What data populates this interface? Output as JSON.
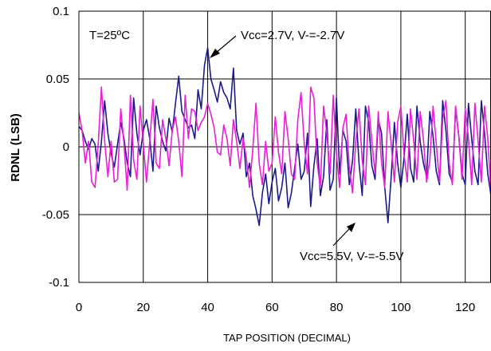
{
  "chart_data": {
    "type": "line",
    "title": "",
    "xlabel": "TAP POSITION (DECIMAL)",
    "ylabel": "RDNL (LSB)",
    "xlim": [
      0,
      128
    ],
    "ylim": [
      -0.1,
      0.1
    ],
    "x_ticks": [
      0,
      20,
      40,
      60,
      80,
      100,
      120
    ],
    "x_tick_labels": [
      "0",
      "20",
      "40",
      "60",
      "80",
      "100",
      "120"
    ],
    "y_ticks": [
      0.1,
      0.05,
      0,
      -0.05,
      -0.1
    ],
    "y_tick_labels": [
      "0.1",
      "0.05",
      "0",
      "-0.05",
      "-0.1"
    ],
    "grid": true,
    "annotations": {
      "temperature": "T=25ºC",
      "series_a_label": "Vcc=2.7V, V-=-2.7V",
      "series_b_label": "Vcc=5.5V, V-=-5.5V"
    },
    "series": [
      {
        "name": "Vcc=2.7V, V-=-2.7V",
        "color": "#1a1a8c",
        "x": [
          0,
          1,
          2,
          3,
          4,
          5,
          6,
          7,
          8,
          9,
          10,
          11,
          12,
          13,
          14,
          15,
          16,
          17,
          18,
          19,
          20,
          21,
          22,
          23,
          24,
          25,
          26,
          27,
          28,
          29,
          30,
          31,
          32,
          33,
          34,
          35,
          36,
          37,
          38,
          39,
          40,
          41,
          42,
          43,
          44,
          45,
          46,
          47,
          48,
          49,
          50,
          51,
          52,
          53,
          54,
          55,
          56,
          57,
          58,
          59,
          60,
          61,
          62,
          63,
          64,
          65,
          66,
          67,
          68,
          69,
          70,
          71,
          72,
          73,
          74,
          75,
          76,
          77,
          78,
          79,
          80,
          81,
          82,
          83,
          84,
          85,
          86,
          87,
          88,
          89,
          90,
          91,
          92,
          93,
          94,
          95,
          96,
          97,
          98,
          99,
          100,
          101,
          102,
          103,
          104,
          105,
          106,
          107,
          108,
          109,
          110,
          111,
          112,
          113,
          114,
          115,
          116,
          117,
          118,
          119,
          120,
          121,
          122,
          123,
          124,
          125,
          126,
          127,
          128
        ],
        "y": [
          0.015,
          0.012,
          0.004,
          -0.002,
          0.006,
          0.002,
          -0.018,
          0.004,
          0.034,
          0.01,
          -0.005,
          -0.015,
          0.002,
          0.018,
          0.006,
          -0.012,
          -0.022,
          0.036,
          0.01,
          -0.006,
          0.012,
          0.02,
          0.006,
          -0.018,
          0.03,
          0.014,
          0.004,
          -0.003,
          0.021,
          0.011,
          0.032,
          0.052,
          0.026,
          0.02,
          0.014,
          0.016,
          0.006,
          0.042,
          0.028,
          0.06,
          0.073,
          0.05,
          0.042,
          0.033,
          0.048,
          0.04,
          0.036,
          0.028,
          0.058,
          0.012,
          0.002,
          0.01,
          -0.022,
          -0.012,
          -0.036,
          -0.046,
          -0.058,
          -0.034,
          -0.02,
          -0.042,
          -0.026,
          -0.016,
          -0.04,
          -0.03,
          -0.012,
          -0.045,
          -0.034,
          -0.016,
          0.002,
          -0.024,
          -0.018,
          0.01,
          -0.044,
          -0.014,
          0.006,
          -0.036,
          -0.022,
          0.02,
          -0.032,
          -0.024,
          0.036,
          -0.02,
          0.012,
          0.004,
          -0.028,
          -0.01,
          0.028,
          -0.012,
          -0.036,
          0.03,
          0.018,
          -0.014,
          -0.024,
          0.02,
          0.01,
          -0.03,
          -0.056,
          -0.022,
          0.018,
          -0.012,
          -0.03,
          -0.008,
          0.024,
          -0.016,
          -0.026,
          0.03,
          0.004,
          -0.012,
          -0.022,
          0.026,
          0.008,
          -0.018,
          -0.028,
          0.034,
          0.012,
          -0.02,
          -0.026,
          0.028,
          0.008,
          -0.02,
          -0.028,
          0.032,
          0.006,
          -0.018,
          -0.028,
          0.034,
          0.01,
          -0.02,
          -0.036
        ]
      },
      {
        "name": "Vcc=5.5V, V-=-5.5V",
        "color": "#e91ed6",
        "x": [
          0,
          1,
          2,
          3,
          4,
          5,
          6,
          7,
          8,
          9,
          10,
          11,
          12,
          13,
          14,
          15,
          16,
          17,
          18,
          19,
          20,
          21,
          22,
          23,
          24,
          25,
          26,
          27,
          28,
          29,
          30,
          31,
          32,
          33,
          34,
          35,
          36,
          37,
          38,
          39,
          40,
          41,
          42,
          43,
          44,
          45,
          46,
          47,
          48,
          49,
          50,
          51,
          52,
          53,
          54,
          55,
          56,
          57,
          58,
          59,
          60,
          61,
          62,
          63,
          64,
          65,
          66,
          67,
          68,
          69,
          70,
          71,
          72,
          73,
          74,
          75,
          76,
          77,
          78,
          79,
          80,
          81,
          82,
          83,
          84,
          85,
          86,
          87,
          88,
          89,
          90,
          91,
          92,
          93,
          94,
          95,
          96,
          97,
          98,
          99,
          100,
          101,
          102,
          103,
          104,
          105,
          106,
          107,
          108,
          109,
          110,
          111,
          112,
          113,
          114,
          115,
          116,
          117,
          118,
          119,
          120,
          121,
          122,
          123,
          124,
          125,
          126,
          127,
          128
        ],
        "y": [
          0.025,
          0.012,
          -0.012,
          0.004,
          -0.026,
          -0.03,
          0.002,
          0.044,
          0.004,
          -0.022,
          0.004,
          -0.026,
          -0.024,
          0.028,
          0.002,
          -0.032,
          0.038,
          -0.01,
          -0.024,
          0.03,
          0.002,
          -0.026,
          0.004,
          0.035,
          -0.012,
          -0.016,
          0.02,
          0.006,
          -0.014,
          0.012,
          0.022,
          0.004,
          -0.022,
          0.038,
          0.006,
          0.028,
          0.026,
          0.012,
          0.018,
          0.022,
          0.032,
          0.024,
          0.014,
          -0.004,
          -0.006,
          0.016,
          0.006,
          -0.014,
          0.02,
          0.004,
          -0.016,
          0.006,
          -0.008,
          -0.03,
          -0.002,
          0.032,
          -0.012,
          -0.028,
          0.004,
          -0.018,
          -0.012,
          0.022,
          -0.004,
          -0.02,
          0.026,
          0.006,
          -0.02,
          -0.024,
          0.02,
          0.04,
          0.002,
          -0.02,
          0.044,
          0.036,
          -0.012,
          -0.03,
          0.03,
          0.01,
          -0.02,
          0.038,
          -0.006,
          -0.03,
          0.014,
          0.024,
          -0.016,
          -0.034,
          0.004,
          0.028,
          -0.01,
          -0.028,
          0.03,
          0.004,
          -0.02,
          0.026,
          -0.012,
          -0.03,
          0.026,
          0.002,
          -0.026,
          0.018,
          0.03,
          -0.006,
          -0.026,
          0.028,
          0.004,
          -0.024,
          0.026,
          0.006,
          -0.026,
          -0.01,
          0.03,
          0.002,
          -0.026,
          0.02,
          0.034,
          -0.012,
          -0.028,
          0.03,
          0.008,
          -0.024,
          0.028,
          0.006,
          -0.028,
          0.032,
          0.004,
          -0.026,
          0.03,
          0.006,
          -0.034
        ]
      }
    ]
  }
}
